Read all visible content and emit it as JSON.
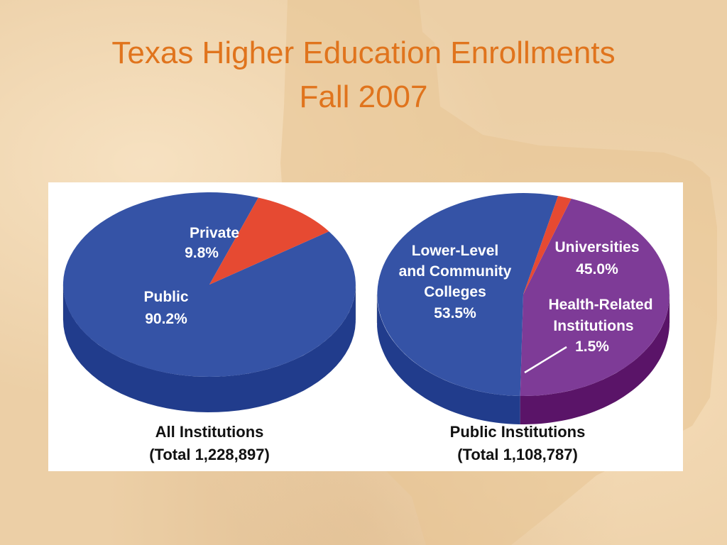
{
  "slide": {
    "title_line1": "Texas Higher Education Enrollments",
    "title_line2": "Fall 2007"
  },
  "colors": {
    "title": "#e0741d",
    "background": "#eccfa6",
    "public_top": "#3553a6",
    "public_side": "#213c8c",
    "private_top": "#e64a32",
    "private_side": "#e5212a",
    "universities_top": "#7e3b97",
    "universities_side": "#5a1468",
    "health_top": "#e64a32",
    "health_side": "#e5212a",
    "label_text": "#ffffff",
    "caption_text": "#111111"
  },
  "chart_data": [
    {
      "type": "pie",
      "caption_line1": "All Institutions",
      "caption_line2": "(Total 1,228,897)",
      "slices": [
        {
          "label_line1": "Public",
          "label_line2": "",
          "value_label": "90.2%",
          "value": 90.2,
          "color": "#3553a6",
          "side_color": "#213c8c"
        },
        {
          "label_line1": "Private",
          "label_line2": "",
          "value_label": "9.8%",
          "value": 9.8,
          "color": "#e64a32",
          "side_color": "#e5212a"
        }
      ]
    },
    {
      "type": "pie",
      "caption_line1": "Public Institutions",
      "caption_line2": "(Total 1,108,787)",
      "slices": [
        {
          "label_line1": "Lower-Level",
          "label_line2": "and Community",
          "label_line3": "Colleges",
          "value_label": "53.5%",
          "value": 53.5,
          "color": "#3553a6",
          "side_color": "#213c8c"
        },
        {
          "label_line1": "Universities",
          "label_line2": "",
          "value_label": "45.0%",
          "value": 45.0,
          "color": "#7e3b97",
          "side_color": "#5a1468"
        },
        {
          "label_line1": "Health-Related",
          "label_line2": "Institutions",
          "value_label": "1.5%",
          "value": 1.5,
          "color": "#e64a32",
          "side_color": "#e5212a"
        }
      ]
    }
  ]
}
